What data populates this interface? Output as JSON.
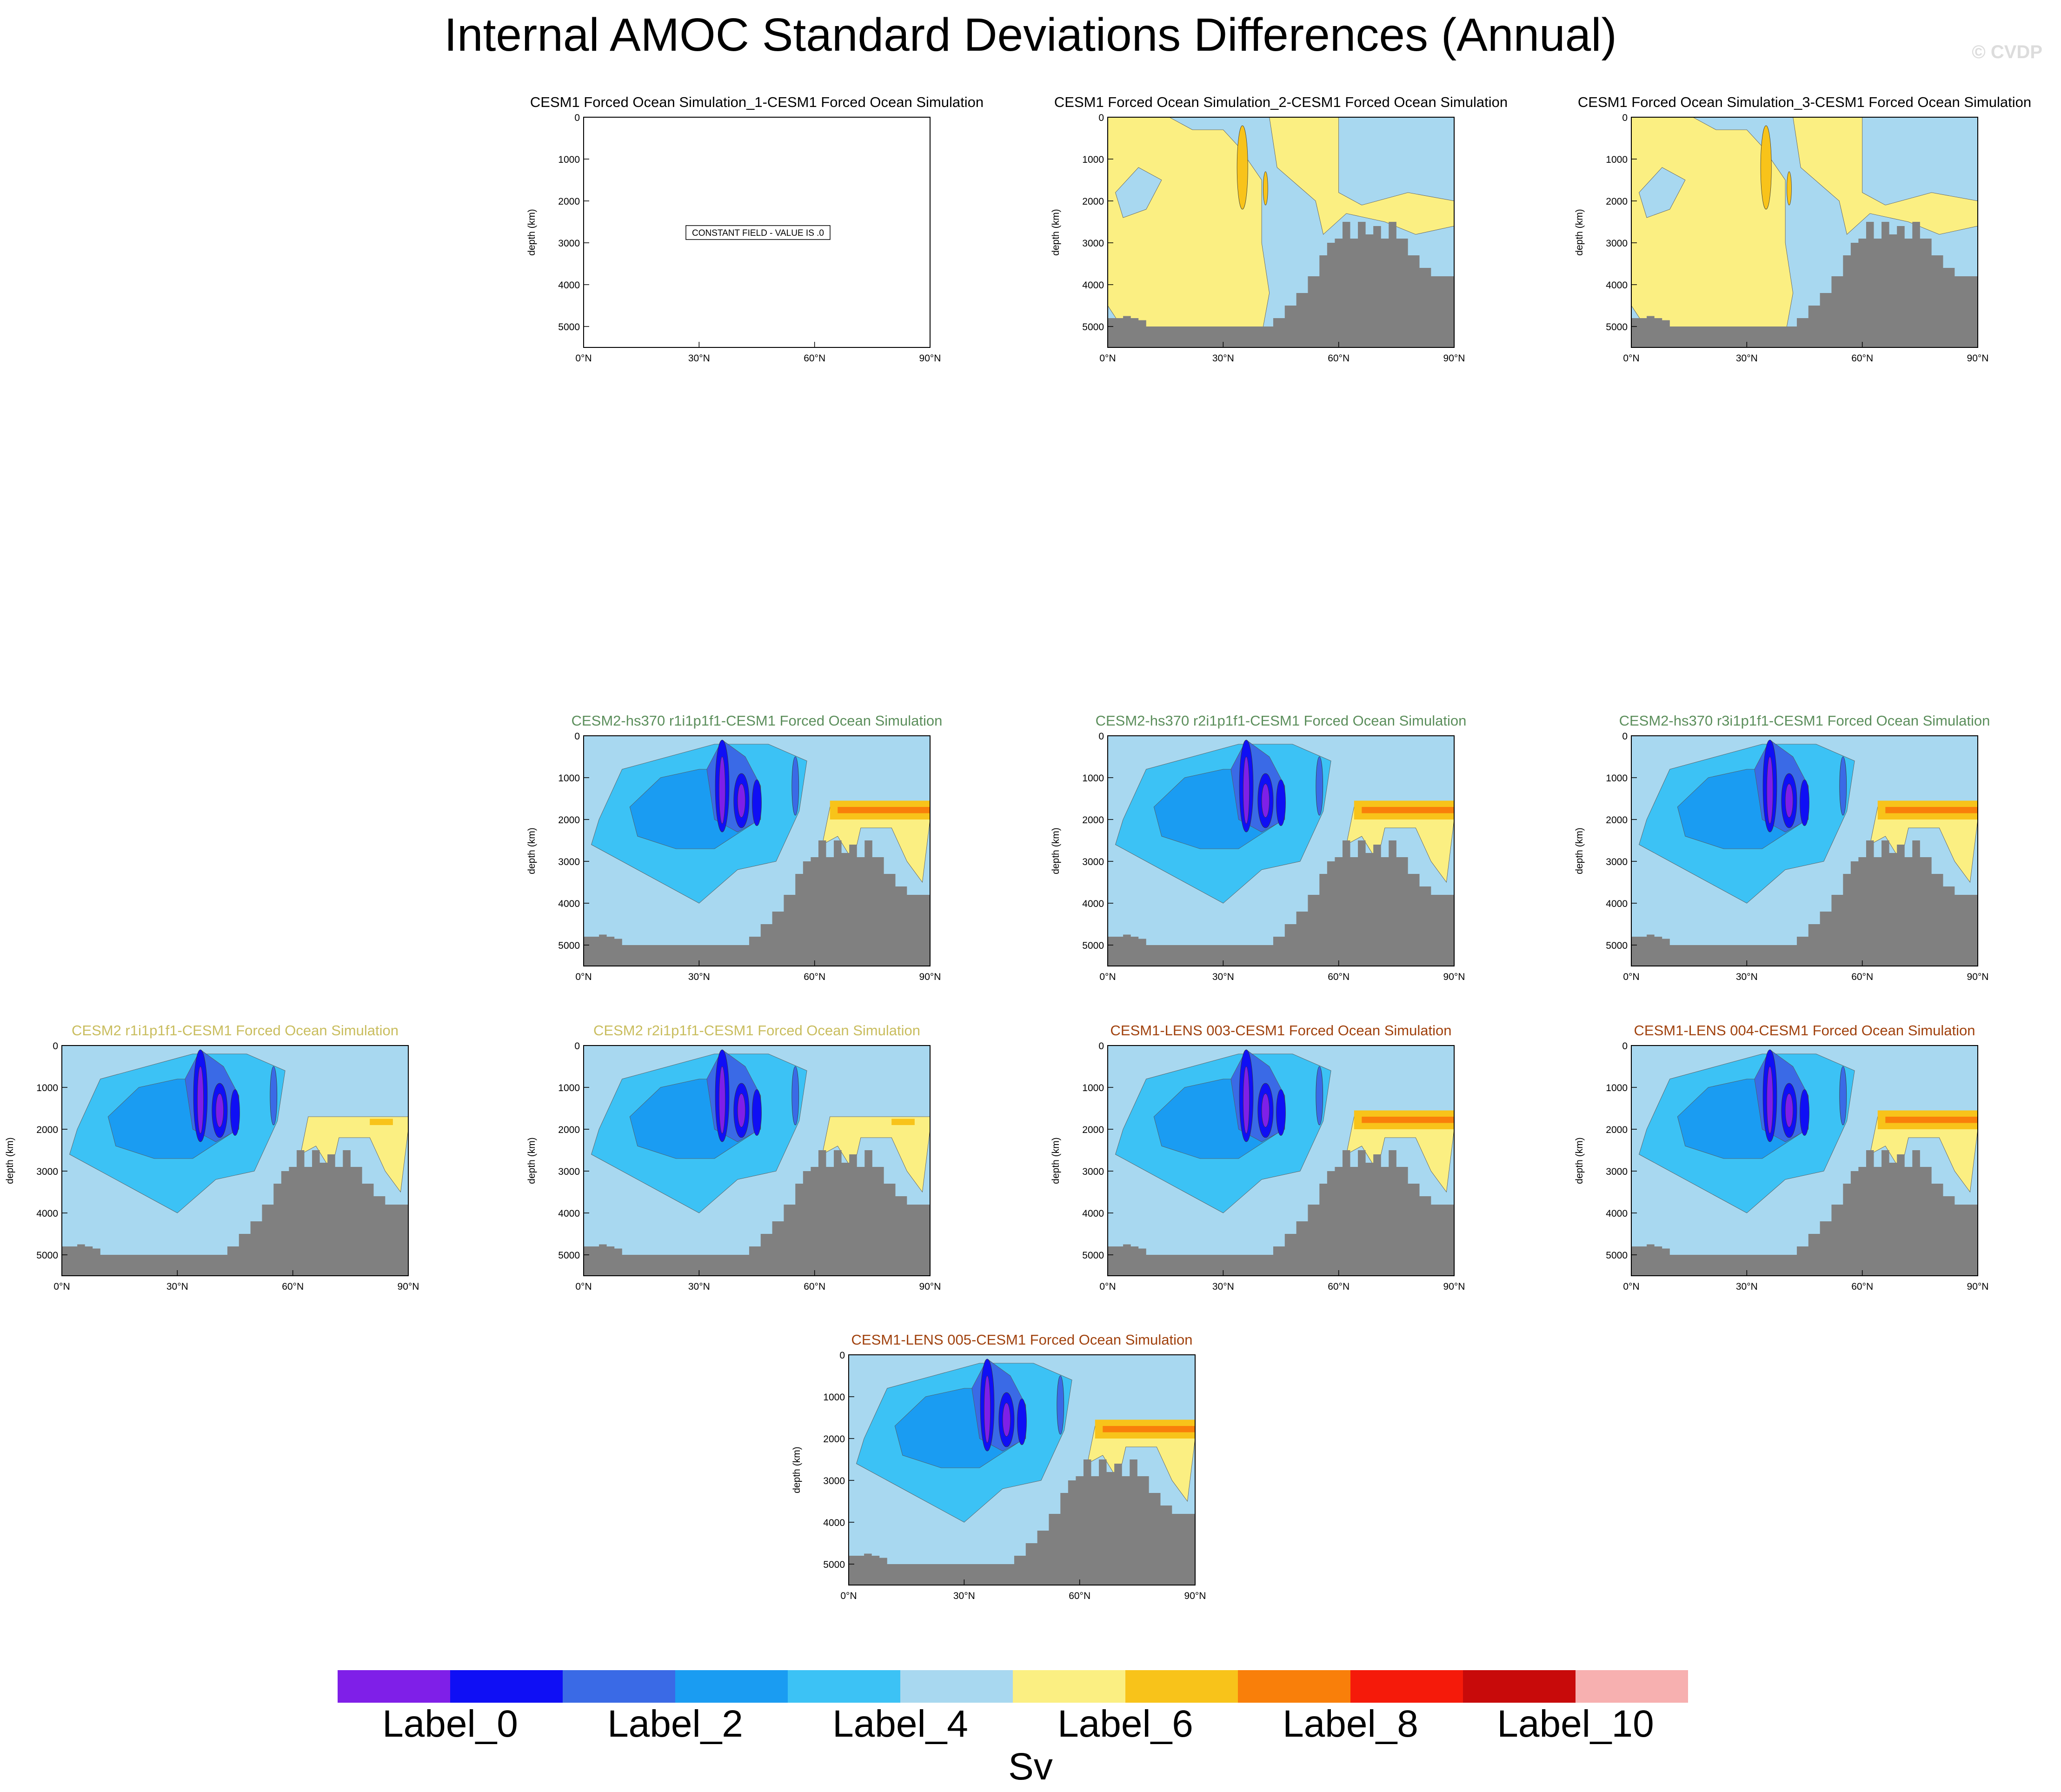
{
  "title": "Internal AMOC Standard Deviations Differences (Annual)",
  "watermark": "© CVDP",
  "colors": {
    "land": "#808080",
    "levels": [
      "#7f1fe8",
      "#0f0ff5",
      "#3a6ae6",
      "#1a9cf2",
      "#3cc2f5",
      "#a8d8f0",
      "#fbef82",
      "#f8c31a",
      "#f97f0a",
      "#f51a0a",
      "#c80a0a",
      "#f7b0b0"
    ],
    "title_black": "#000000",
    "title_green": "#5b8e5b",
    "title_yellow": "#c9bd5e",
    "title_brown": "#a0410d"
  },
  "axis": {
    "y_ticks": [
      "0",
      "1000",
      "2000",
      "3000",
      "4000",
      "5000"
    ],
    "x_ticks": [
      "0°N",
      "30°N",
      "60°N",
      "90°N"
    ],
    "ylabel": "depth (km)"
  },
  "colorbar": {
    "labels": [
      "Label_0",
      "Label_2",
      "Label_4",
      "Label_6",
      "Label_8",
      "Label_10"
    ],
    "units": "Sv"
  },
  "chart_data": [
    {
      "id": "p1",
      "type": "heatmap",
      "title": "CESM1 Forced Ocean Simulation_1-CESM1 Forced Ocean Simulation",
      "title_color": "black",
      "constant": true,
      "constant_text": "CONSTANT FIELD - VALUE IS .0",
      "xlim": [
        0,
        90
      ],
      "ylim": [
        0,
        5500
      ],
      "ylabel": "depth (km)",
      "pattern": "none"
    },
    {
      "id": "p2",
      "type": "heatmap",
      "title": "CESM1 Forced Ocean Simulation_2-CESM1 Forced Ocean Simulation",
      "title_color": "black",
      "constant": false,
      "xlim": [
        0,
        90
      ],
      "ylim": [
        0,
        5500
      ],
      "ylabel": "depth (km)",
      "pattern": "yellow"
    },
    {
      "id": "p3",
      "type": "heatmap",
      "title": "CESM1 Forced Ocean Simulation_3-CESM1 Forced Ocean Simulation",
      "title_color": "black",
      "constant": false,
      "xlim": [
        0,
        90
      ],
      "ylim": [
        0,
        5500
      ],
      "ylabel": "depth (km)",
      "pattern": "yellow"
    },
    {
      "id": "p4",
      "type": "heatmap",
      "title": "CESM2-hs370 r1i1p1f1-CESM1 Forced Ocean Simulation",
      "title_color": "green",
      "constant": false,
      "xlim": [
        0,
        90
      ],
      "ylim": [
        0,
        5500
      ],
      "ylabel": "depth (km)",
      "pattern": "blue"
    },
    {
      "id": "p5",
      "type": "heatmap",
      "title": "CESM2-hs370 r2i1p1f1-CESM1 Forced Ocean Simulation",
      "title_color": "green",
      "constant": false,
      "xlim": [
        0,
        90
      ],
      "ylim": [
        0,
        5500
      ],
      "ylabel": "depth (km)",
      "pattern": "blue"
    },
    {
      "id": "p6",
      "type": "heatmap",
      "title": "CESM2-hs370 r3i1p1f1-CESM1 Forced Ocean Simulation",
      "title_color": "green",
      "constant": false,
      "xlim": [
        0,
        90
      ],
      "ylim": [
        0,
        5500
      ],
      "ylabel": "depth (km)",
      "pattern": "blue"
    },
    {
      "id": "p7",
      "type": "heatmap",
      "title": "CESM2 r1i1p1f1-CESM1 Forced Ocean Simulation",
      "title_color": "yellow",
      "constant": false,
      "xlim": [
        0,
        90
      ],
      "ylim": [
        0,
        5500
      ],
      "ylabel": "depth (km)",
      "pattern": "blue2"
    },
    {
      "id": "p8",
      "type": "heatmap",
      "title": "CESM2 r2i1p1f1-CESM1 Forced Ocean Simulation",
      "title_color": "yellow",
      "constant": false,
      "xlim": [
        0,
        90
      ],
      "ylim": [
        0,
        5500
      ],
      "ylabel": "depth (km)",
      "pattern": "blue2"
    },
    {
      "id": "p9",
      "type": "heatmap",
      "title": "CESM1-LENS 003-CESM1 Forced Ocean Simulation",
      "title_color": "brown",
      "constant": false,
      "xlim": [
        0,
        90
      ],
      "ylim": [
        0,
        5500
      ],
      "ylabel": "depth (km)",
      "pattern": "lens"
    },
    {
      "id": "p10",
      "type": "heatmap",
      "title": "CESM1-LENS 004-CESM1 Forced Ocean Simulation",
      "title_color": "brown",
      "constant": false,
      "xlim": [
        0,
        90
      ],
      "ylim": [
        0,
        5500
      ],
      "ylabel": "depth (km)",
      "pattern": "lens"
    },
    {
      "id": "p11",
      "type": "heatmap",
      "title": "CESM1-LENS 005-CESM1 Forced Ocean Simulation",
      "title_color": "brown",
      "constant": false,
      "xlim": [
        0,
        90
      ],
      "ylim": [
        0,
        5500
      ],
      "ylabel": "depth (km)",
      "pattern": "lens"
    }
  ]
}
